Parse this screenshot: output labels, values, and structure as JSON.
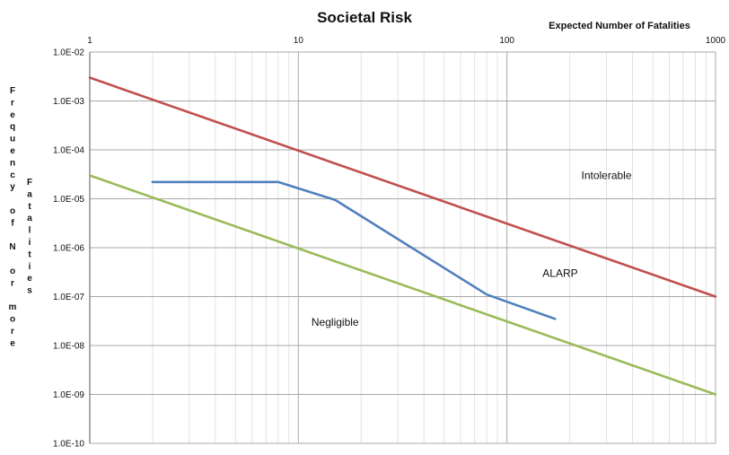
{
  "chart_data": {
    "type": "line",
    "title": "Societal Risk",
    "xlabel": "Expected Number of Fatalities",
    "ylabel_words": [
      [
        "F",
        "r",
        "e",
        "q",
        "u",
        "e",
        "n",
        "c",
        "y",
        " ",
        "o",
        "f",
        " ",
        "N",
        " ",
        "o",
        "r",
        " ",
        "m",
        "o",
        "r",
        "e"
      ],
      [
        "F",
        "a",
        "t",
        "a",
        "l",
        "i",
        "t",
        "i",
        "e",
        "s"
      ]
    ],
    "x_scale": "log",
    "y_scale": "log",
    "xlim": [
      1,
      1000
    ],
    "ylim": [
      1e-10,
      0.01
    ],
    "x_ticks": [
      {
        "value": 1,
        "label": "1"
      },
      {
        "value": 10,
        "label": "10"
      },
      {
        "value": 100,
        "label": "100"
      },
      {
        "value": 1000,
        "label": "1000"
      }
    ],
    "y_ticks": [
      {
        "value": 0.01,
        "label": "1.0E-02"
      },
      {
        "value": 0.001,
        "label": "1.0E-03"
      },
      {
        "value": 0.0001,
        "label": "1.0E-04"
      },
      {
        "value": 1e-05,
        "label": "1.0E-05"
      },
      {
        "value": 1e-06,
        "label": "1.0E-06"
      },
      {
        "value": 1e-07,
        "label": "1.0E-07"
      },
      {
        "value": 1e-08,
        "label": "1.0E-08"
      },
      {
        "value": 1e-09,
        "label": "1.0E-09"
      },
      {
        "value": 1e-10,
        "label": "1.0E-10"
      }
    ],
    "grid": true,
    "minor_grid": true,
    "series": [
      {
        "color": "#c0504d",
        "x": [
          1,
          1000
        ],
        "y": [
          0.003,
          1e-07
        ]
      },
      {
        "color": "#9bbb59",
        "x": [
          1,
          1000
        ],
        "y": [
          3e-05,
          1e-09
        ]
      },
      {
        "color": "#4f81bd",
        "x": [
          2,
          8,
          15,
          80,
          170
        ],
        "y": [
          2.2e-05,
          2.2e-05,
          9.5e-06,
          1.1e-07,
          3.5e-08
        ]
      }
    ],
    "annotations": [
      {
        "text": "Intolerable",
        "x": 300,
        "y": 3e-05
      },
      {
        "text": "ALARP",
        "x": 180,
        "y": 3e-07
      },
      {
        "text": "Negligible",
        "x": 15,
        "y": 3e-08
      }
    ]
  }
}
